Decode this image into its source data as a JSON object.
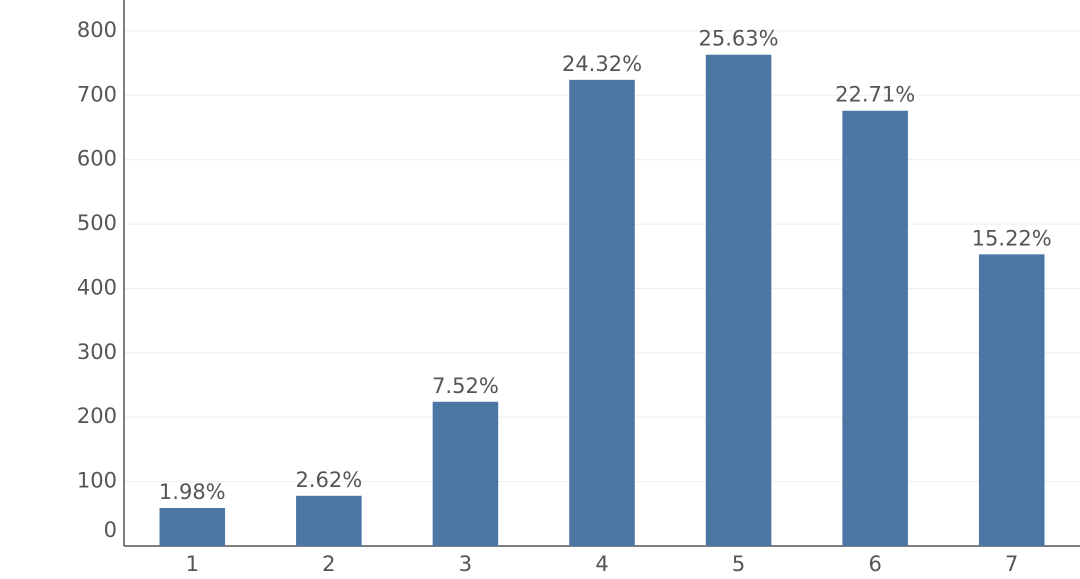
{
  "chart_data": {
    "type": "bar",
    "categories": [
      "1",
      "2",
      "3",
      "4",
      "5",
      "6",
      "7"
    ],
    "values": [
      59,
      78,
      224,
      724,
      763,
      676,
      453
    ],
    "bar_labels": [
      "1.98%",
      "2.62%",
      "7.52%",
      "24.32%",
      "25.63%",
      "22.71%",
      "15.22%"
    ],
    "color": "#4c77a5",
    "ylim": [
      0,
      848
    ],
    "yticks": [
      0,
      100,
      200,
      300,
      400,
      500,
      600,
      700,
      800
    ],
    "grid": true
  }
}
